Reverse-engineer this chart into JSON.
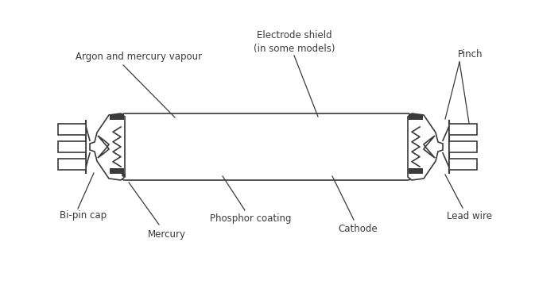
{
  "bg_color": "#ffffff",
  "line_color": "#3a3a3a",
  "text_color": "#3a3a3a",
  "fig_width": 6.73,
  "fig_height": 3.68,
  "labels": {
    "argon": "Argon and mercury vapour",
    "electrode_shield": "Electrode shield\n(in some models)",
    "pinch": "Pinch",
    "bi_pin": "Bi-pin cap",
    "phosphor": "Phosphor coating",
    "mercury": "Mercury",
    "cathode": "Cathode",
    "lead_wire": "Lead wire"
  },
  "font_size": 8.5
}
